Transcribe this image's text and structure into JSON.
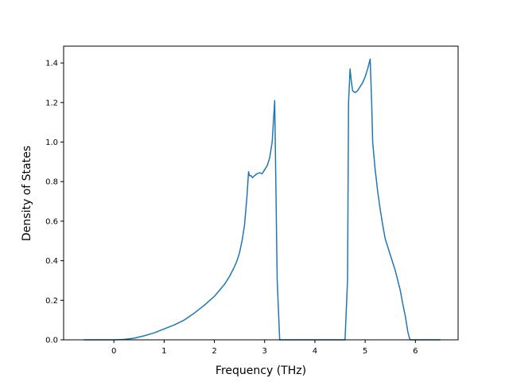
{
  "chart_data": {
    "type": "line",
    "title": "",
    "xlabel": "Frequency (THz)",
    "ylabel": "Density of States",
    "xlim": [
      -1.0,
      6.85
    ],
    "ylim": [
      0.0,
      1.485
    ],
    "grid": false,
    "legend": "none",
    "xticks": [
      0,
      1,
      2,
      3,
      4,
      5,
      6
    ],
    "xtick_labels": [
      "0",
      "1",
      "2",
      "3",
      "4",
      "5",
      "6"
    ],
    "yticks": [
      0.0,
      0.2,
      0.4,
      0.6,
      0.8,
      1.0,
      1.2,
      1.4
    ],
    "ytick_labels": [
      "0.0",
      "0.2",
      "0.4",
      "0.6",
      "0.8",
      "1.0",
      "1.2",
      "1.4"
    ],
    "colors": {
      "line": "#1f77b4",
      "axes": "#000000",
      "background": "#ffffff"
    },
    "series": [
      {
        "x": [
          -0.6,
          -0.3,
          0.0,
          0.2,
          0.4,
          0.6,
          0.8,
          1.0,
          1.2,
          1.4,
          1.6,
          1.8,
          2.0,
          2.1,
          2.2,
          2.3,
          2.4,
          2.45,
          2.5,
          2.55,
          2.6,
          2.62,
          2.65,
          2.68,
          2.7,
          2.73,
          2.76,
          2.8,
          2.85,
          2.9,
          2.95,
          3.0,
          3.05,
          3.1,
          3.15,
          3.2,
          3.25,
          3.3,
          3.32,
          3.35,
          3.4,
          3.6,
          3.8,
          4.0,
          4.2,
          4.4,
          4.6,
          4.65,
          4.67,
          4.7,
          4.72,
          4.75,
          4.8,
          4.85,
          4.9,
          4.95,
          5.0,
          5.05,
          5.1,
          5.13,
          5.15,
          5.2,
          5.25,
          5.3,
          5.35,
          5.4,
          5.5,
          5.6,
          5.7,
          5.75,
          5.8,
          5.85,
          5.88,
          5.9,
          5.95,
          6.0,
          6.2,
          6.5
        ],
        "y": [
          0.0,
          0.0,
          0.0,
          0.002,
          0.008,
          0.02,
          0.035,
          0.055,
          0.075,
          0.1,
          0.135,
          0.175,
          0.22,
          0.25,
          0.28,
          0.32,
          0.37,
          0.4,
          0.44,
          0.5,
          0.58,
          0.64,
          0.73,
          0.85,
          0.83,
          0.83,
          0.82,
          0.83,
          0.84,
          0.845,
          0.84,
          0.86,
          0.88,
          0.92,
          1.0,
          1.21,
          0.3,
          0.0,
          0.0,
          0.0,
          0.0,
          0.0,
          0.0,
          0.0,
          0.0,
          0.0,
          0.0,
          0.3,
          1.2,
          1.37,
          1.32,
          1.26,
          1.25,
          1.26,
          1.28,
          1.3,
          1.33,
          1.37,
          1.42,
          1.2,
          1.0,
          0.86,
          0.75,
          0.66,
          0.58,
          0.51,
          0.43,
          0.35,
          0.25,
          0.18,
          0.12,
          0.04,
          0.01,
          0.0,
          0.0,
          0.0,
          0.0,
          0.0
        ]
      }
    ]
  }
}
